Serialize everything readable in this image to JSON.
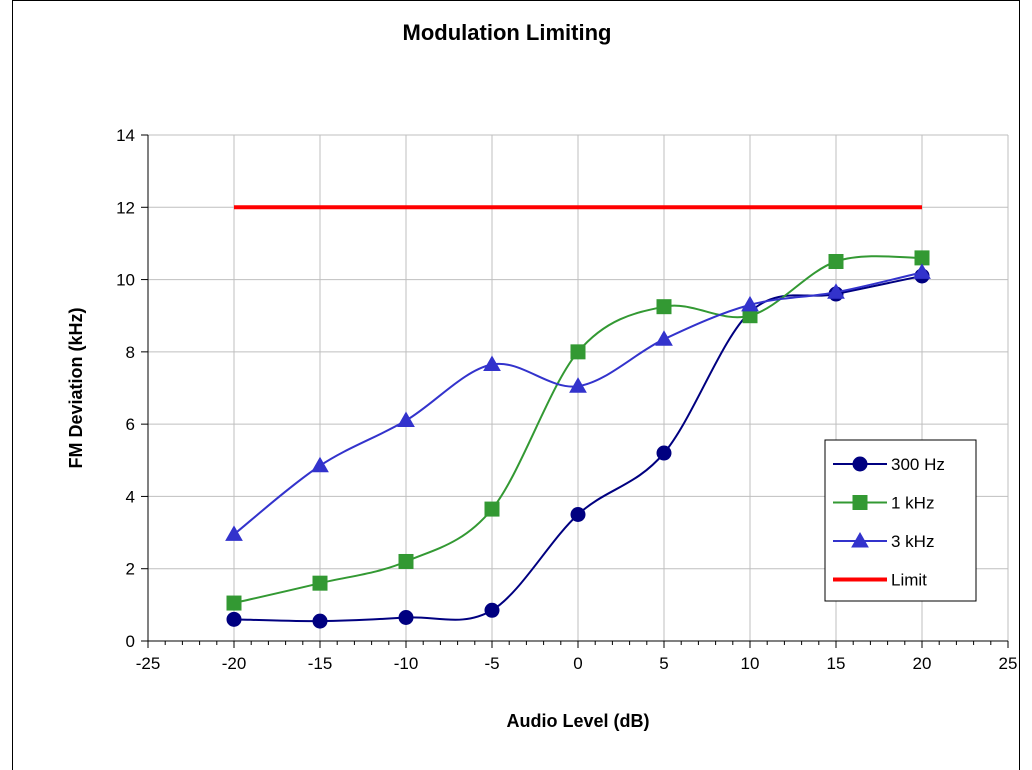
{
  "chart_data": {
    "type": "line",
    "title": "Modulation Limiting",
    "xlabel": "Audio Level (dB)",
    "ylabel": "FM Deviation (kHz)",
    "xlim": [
      -25,
      25
    ],
    "ylim": [
      0,
      14
    ],
    "xticks": [
      -25,
      -20,
      -15,
      -10,
      -5,
      0,
      5,
      10,
      15,
      20,
      25
    ],
    "yticks": [
      0,
      2,
      4,
      6,
      8,
      10,
      12,
      14
    ],
    "grid": true,
    "legend_position": "lower-right",
    "series": [
      {
        "name": "300 Hz",
        "color": "#000080",
        "marker": "circle",
        "x": [
          -20,
          -15,
          -10,
          -5,
          0,
          5,
          10,
          15,
          20
        ],
        "y": [
          0.6,
          0.55,
          0.65,
          0.85,
          3.5,
          5.2,
          9.1,
          9.6,
          10.1
        ]
      },
      {
        "name": "1 kHz",
        "color": "#339933",
        "marker": "square",
        "x": [
          -20,
          -15,
          -10,
          -5,
          0,
          5,
          10,
          15,
          20
        ],
        "y": [
          1.05,
          1.6,
          2.2,
          3.65,
          8.0,
          9.25,
          9.0,
          10.5,
          10.6
        ]
      },
      {
        "name": "3 kHz",
        "color": "#3333CC",
        "marker": "triangle",
        "x": [
          -20,
          -15,
          -10,
          -5,
          0,
          5,
          10,
          15,
          20
        ],
        "y": [
          2.95,
          4.85,
          6.1,
          7.65,
          7.05,
          8.35,
          9.3,
          9.65,
          10.2
        ]
      },
      {
        "name": "Limit",
        "color": "#FF0000",
        "marker": "none",
        "x": [
          -20,
          20
        ],
        "y": [
          12,
          12
        ]
      }
    ]
  }
}
